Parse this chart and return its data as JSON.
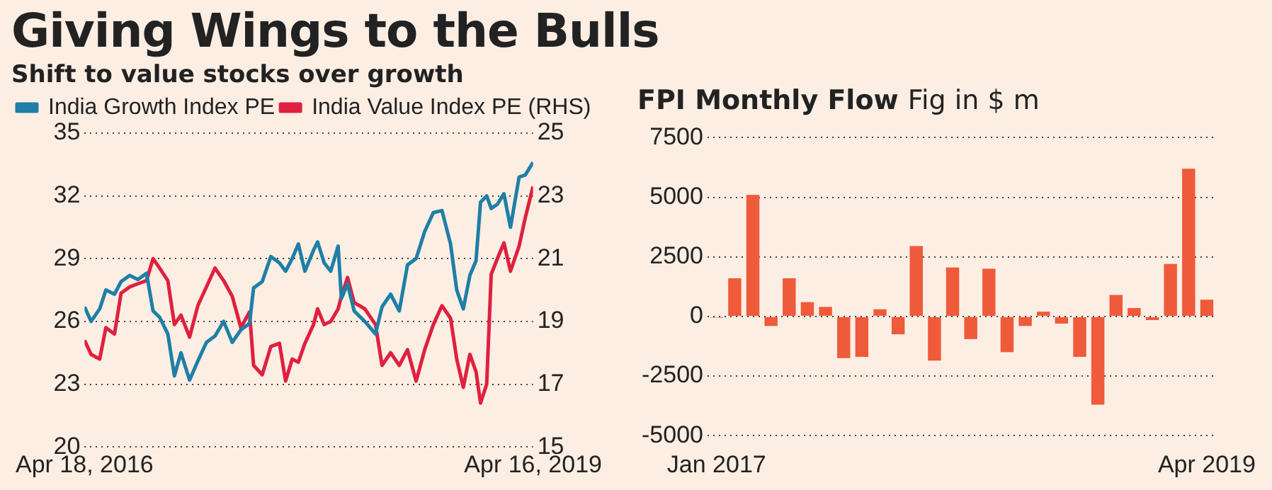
{
  "chart_data": [
    {
      "type": "line",
      "title": "Giving Wings to the Bulls",
      "subtitle": "Shift to value stocks over growth",
      "x": [
        "2016-04-18",
        "2016-05-04",
        "2016-05-25",
        "2016-06-09",
        "2016-06-30",
        "2016-07-16",
        "2016-08-06",
        "2016-08-26",
        "2016-09-16",
        "2016-10-02",
        "2016-10-18",
        "2016-11-07",
        "2016-11-23",
        "2016-12-09",
        "2016-12-30",
        "2017-01-19",
        "2017-02-09",
        "2017-03-02",
        "2017-03-23",
        "2017-04-13",
        "2017-05-04",
        "2017-05-25",
        "2017-06-04",
        "2017-06-25",
        "2017-07-16",
        "2017-08-06",
        "2017-08-21",
        "2017-09-06",
        "2017-09-21",
        "2017-10-07",
        "2017-10-28",
        "2017-11-07",
        "2017-11-23",
        "2017-12-09",
        "2017-12-27",
        "2018-01-04",
        "2018-01-19",
        "2018-02-04",
        "2018-03-02",
        "2018-03-28",
        "2018-04-13",
        "2018-05-04",
        "2018-05-25",
        "2018-06-14",
        "2018-07-05",
        "2018-07-26",
        "2018-08-16",
        "2018-09-06",
        "2018-09-27",
        "2018-10-12",
        "2018-10-28",
        "2018-11-13",
        "2018-11-28",
        "2018-12-09",
        "2018-12-24",
        "2019-01-04",
        "2019-01-19",
        "2019-02-04",
        "2019-02-20",
        "2019-03-13",
        "2019-03-28",
        "2019-04-16"
      ],
      "series": [
        {
          "name": "India Growth Index PE",
          "color": "#1f7fa6",
          "values": [
            26.7,
            26.0,
            26.6,
            27.5,
            27.3,
            27.9,
            28.2,
            28.0,
            28.3,
            26.5,
            26.2,
            25.4,
            23.4,
            24.5,
            23.2,
            24.1,
            25.0,
            25.3,
            26.0,
            25.0,
            25.6,
            25.9,
            27.6,
            27.9,
            29.1,
            28.8,
            28.4,
            29.0,
            29.7,
            28.4,
            29.4,
            29.8,
            28.8,
            28.4,
            29.6,
            27.1,
            27.8,
            26.5,
            26.0,
            25.4,
            26.7,
            27.3,
            26.5,
            28.7,
            29.0,
            30.3,
            31.2,
            31.3,
            29.7,
            27.5,
            26.6,
            28.2,
            28.9,
            31.7,
            32.0,
            31.4,
            31.6,
            32.1,
            30.5,
            32.9,
            33.0,
            33.6
          ]
        },
        {
          "name": "India Value Index PE (RHS)",
          "color": "#e0203f",
          "axis": "y2",
          "values": [
            18.4,
            17.95,
            17.8,
            18.8,
            18.6,
            19.9,
            20.1,
            20.2,
            20.3,
            21.0,
            20.7,
            20.3,
            18.9,
            19.2,
            18.5,
            19.5,
            20.1,
            20.7,
            20.3,
            19.8,
            18.8,
            19.3,
            17.6,
            17.3,
            18.2,
            18.3,
            17.1,
            17.8,
            17.7,
            18.3,
            18.9,
            19.4,
            18.9,
            19.0,
            19.4,
            19.8,
            20.4,
            19.6,
            19.4,
            18.9,
            17.6,
            18.0,
            17.6,
            18.1,
            17.1,
            18.1,
            18.9,
            19.5,
            19.1,
            17.8,
            16.9,
            17.95,
            17.4,
            16.4,
            17.0,
            20.5,
            21.0,
            21.5,
            20.6,
            21.4,
            22.3,
            23.3
          ]
        }
      ],
      "xlim": [
        "2016-04-18",
        "2019-04-16"
      ],
      "xticks": [
        {
          "value": "2016-04-18",
          "label": "Apr 18, 2016"
        },
        {
          "value": "2019-04-16",
          "label": "Apr 16, 2019"
        }
      ],
      "ylim": [
        20,
        35
      ],
      "yticks": [
        20,
        23,
        26,
        29,
        32,
        35
      ],
      "y2lim": [
        15,
        25
      ],
      "y2ticks": [
        15,
        17,
        19,
        21,
        23,
        25
      ],
      "grid": "y",
      "legend": "top left",
      "marker": "none",
      "line_style": "solid"
    },
    {
      "type": "bar",
      "title": "FPI Monthly Flow",
      "subtitle": "Fig in $ m",
      "categories": [
        "Jan 2017",
        null,
        null,
        null,
        null,
        null,
        null,
        null,
        null,
        null,
        null,
        null,
        null,
        null,
        null,
        null,
        null,
        null,
        null,
        null,
        null,
        null,
        null,
        null,
        null,
        null,
        null,
        "Apr 2019"
      ],
      "values": [
        -50,
        1600,
        5100,
        -400,
        1600,
        600,
        400,
        -1750,
        -1700,
        300,
        -750,
        2950,
        -1850,
        2050,
        -950,
        2000,
        -1500,
        -400,
        200,
        -300,
        -1700,
        -3700,
        900,
        350,
        -150,
        2200,
        6200,
        700
      ],
      "color": "#ef5a3a",
      "ylim": [
        -5000,
        7500
      ],
      "yticks": [
        -5000,
        -2500,
        0,
        2500,
        5000,
        7500
      ],
      "grid": "y",
      "legend": false
    }
  ]
}
